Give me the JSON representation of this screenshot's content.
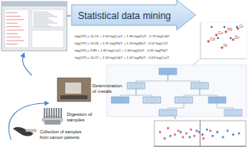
{
  "header": {
    "title": "Statistical data mining"
  },
  "equations": [
    "log(1/P) = 10.13 + 2.04 log(Cu)T + 1.36 log(Zn)T - 0.76 log(Cd)T",
    "log(1/P) = 10.55 + 2.31 log(Pb)T + 1.19 log(Ni)T - 0.52 log(Cr)T",
    "log(1/P) = 9.89 + 1.83 log(Cu)T + 1.58 log(Zn)T - 0.91 log(Pb)T",
    "log(1/P) = 10.27 + 2.16 log(Cd)T + 1.42 log(Ni)T - 0.63 log(Cu)T"
  ],
  "pca_labels": [
    "Cd",
    "Cu",
    "Pb",
    "Zn",
    "Ni",
    "Cr"
  ],
  "steps": [
    {
      "label": "Determination of metals"
    },
    {
      "label": "Digestion of samples"
    },
    {
      "label": "Collection of samples from cancer patients"
    }
  ],
  "chart_data": {
    "type": "scatter",
    "xlim": [
      -4,
      4
    ],
    "ylim": [
      0,
      1
    ],
    "tick_labels": false,
    "grid": false,
    "series": [
      {
        "color": "#d9534f",
        "marker": "circle",
        "x": [
          -3.5,
          -3.1,
          -2.8,
          -2.2,
          -1.9,
          -1.5,
          -1.2,
          -0.8,
          -0.5,
          -0.1,
          0.3,
          0.9
        ],
        "y": [
          0.55,
          0.3,
          0.7,
          0.45,
          0.6,
          0.35,
          0.5,
          0.65,
          0.4,
          0.55,
          0.3,
          0.6
        ]
      },
      {
        "color": "#3a6fc4",
        "marker": "circle",
        "x": [
          -2.6,
          -1.7,
          -0.9,
          -0.3,
          0.2,
          0.6,
          1.1,
          1.5,
          2.0,
          2.4,
          2.9,
          3.4
        ],
        "y": [
          0.4,
          0.55,
          0.35,
          0.6,
          0.45,
          0.65,
          0.4,
          0.55,
          0.35,
          0.6,
          0.45,
          0.5
        ]
      }
    ]
  }
}
